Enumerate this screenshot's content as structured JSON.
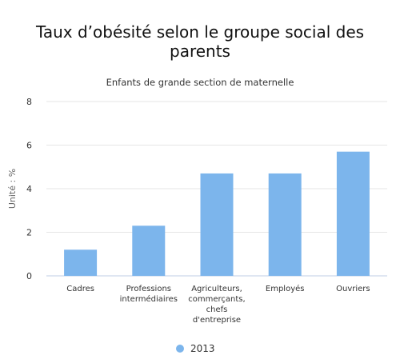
{
  "chart_data": {
    "type": "bar",
    "title": "Taux d’obésité selon le groupe social des parents",
    "subtitle": "Enfants de grande section de maternelle",
    "ylabel": "Unité : %",
    "xlabel": "",
    "ylim": [
      0,
      8
    ],
    "yticks": [
      0,
      2,
      4,
      6,
      8
    ],
    "grid": true,
    "legend_position": "bottom",
    "categories": [
      [
        "Cadres"
      ],
      [
        "Professions",
        "intermédiaires"
      ],
      [
        "Agriculteurs,",
        "commerçants,",
        "chefs",
        "d'entreprise"
      ],
      [
        "Employés"
      ],
      [
        "Ouvriers"
      ]
    ],
    "series": [
      {
        "name": "2013",
        "color": "#7cb5ec",
        "values": [
          1.2,
          2.3,
          4.7,
          4.7,
          5.7
        ]
      }
    ]
  }
}
